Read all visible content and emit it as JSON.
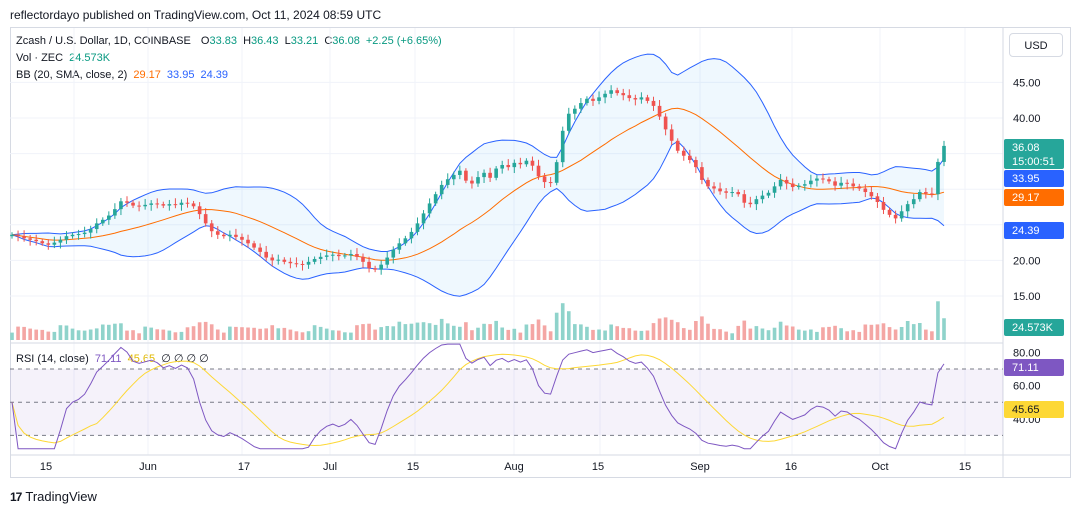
{
  "header": {
    "published": "reflectordayo published on TradingView.com, Oct 11, 2024 08:59 UTC"
  },
  "legend": {
    "symbol": "Zcash / U.S. Dollar, 1D, COINBASE",
    "o_label": "O",
    "o_value": "33.83",
    "h_label": "H",
    "h_value": "36.43",
    "l_label": "L",
    "l_value": "33.21",
    "c_label": "C",
    "c_value": "36.08",
    "change": "+2.25 (+6.65%)",
    "vol_label": "Vol · ZEC",
    "vol_value": "24.573K",
    "bb_label": "BB (20, SMA, close, 2)",
    "bb_mid": "29.17",
    "bb_upper": "33.95",
    "bb_lower": "24.39",
    "rsi_label": "RSI (14, close)",
    "rsi_value": "71.11",
    "rsi_ma": "45.65",
    "rsi_extra": "∅ ∅ ∅ ∅"
  },
  "currency_button": "USD",
  "price_axis": [
    "45.00",
    "40.00",
    "20.00",
    "15.00"
  ],
  "rsi_axis": [
    "80.00",
    "60.00",
    "40.00"
  ],
  "price_tags": {
    "last_price": "36.08",
    "countdown": "15:00:51",
    "bb_upper": "33.95",
    "bb_mid": "29.17",
    "bb_lower": "24.39",
    "volume": "24.573K",
    "rsi": "71.11",
    "rsi_ma": "45.65"
  },
  "time_axis": [
    "15",
    "Jun",
    "17",
    "Jul",
    "15",
    "Aug",
    "15",
    "Sep",
    "16",
    "Oct",
    "15"
  ],
  "footer": {
    "brand": "TradingView",
    "logo": "17"
  },
  "colors": {
    "up": "#26a69a",
    "down": "#ef5350",
    "bb_band": "#2962ff",
    "bb_mid": "#ff6d00",
    "rsi_line": "#7e57c2",
    "rsi_ma": "#fdd835",
    "vol_up": "#8fd3cb",
    "vol_down": "#f4a6a4"
  },
  "chart_data": {
    "type": "candlestick",
    "title": "Zcash / U.S. Dollar, 1D, COINBASE",
    "xlabel": "",
    "ylabel": "",
    "ylim": [
      12,
      50
    ],
    "x_range": [
      "2024-05-08",
      "2024-10-11"
    ],
    "candles_close": [
      23.6,
      23.4,
      23.1,
      22.9,
      22.7,
      22.4,
      22.2,
      22.5,
      22.9,
      23.4,
      23.6,
      23.7,
      23.9,
      24.4,
      25.2,
      25.7,
      26.3,
      27.2,
      28.3,
      28.1,
      27.7,
      27.6,
      27.8,
      28.0,
      27.9,
      27.7,
      27.9,
      27.8,
      28.1,
      28.0,
      27.6,
      26.5,
      25.2,
      24.1,
      23.6,
      23.4,
      23.6,
      23.3,
      22.9,
      22.4,
      21.8,
      21.2,
      20.4,
      20.0,
      20.1,
      19.8,
      19.6,
      19.5,
      19.4,
      19.8,
      20.2,
      20.5,
      20.7,
      20.8,
      20.6,
      20.7,
      20.9,
      20.5,
      19.8,
      18.9,
      18.7,
      19.4,
      20.4,
      21.5,
      22.4,
      23.1,
      24.0,
      25.2,
      26.6,
      28.0,
      29.3,
      30.6,
      31.4,
      32.0,
      32.6,
      31.2,
      30.8,
      31.7,
      32.3,
      31.6,
      32.9,
      33.4,
      33.1,
      33.7,
      33.5,
      34.0,
      33.3,
      31.8,
      31.0,
      30.9,
      33.8,
      38.2,
      40.6,
      41.3,
      42.1,
      42.7,
      42.4,
      42.9,
      43.4,
      43.9,
      43.5,
      43.2,
      42.8,
      42.6,
      42.9,
      42.4,
      41.7,
      40.2,
      38.4,
      36.8,
      35.4,
      34.7,
      34.1,
      33.1,
      31.3,
      30.4,
      30.1,
      29.7,
      29.5,
      29.6,
      29.3,
      28.1,
      27.9,
      28.6,
      29.1,
      29.5,
      30.4,
      31.3,
      30.8,
      30.3,
      30.5,
      30.7,
      31.2,
      31.5,
      31.4,
      31.1,
      30.5,
      30.9,
      30.8,
      30.4,
      30.1,
      29.6,
      29.0,
      28.2,
      27.1,
      26.4,
      25.9,
      26.9,
      27.9,
      28.6,
      29.6,
      29.4,
      29.3,
      33.83,
      36.08
    ],
    "bb_upper_last": 33.95,
    "bb_mid_last": 29.17,
    "bb_lower_last": 24.39,
    "volume_last": "24.573K",
    "rsi_last": 71.11,
    "rsi_ma_last": 45.65,
    "rsi_levels": [
      70,
      50,
      30
    ]
  }
}
